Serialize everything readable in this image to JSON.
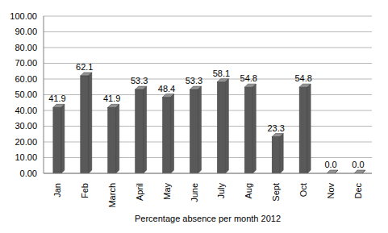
{
  "chart_data": {
    "type": "bar",
    "xlabel": "Percentage absence per month 2012",
    "categories": [
      "Jan",
      "Feb",
      "March",
      "April",
      "May",
      "June",
      "July",
      "Aug",
      "Sept",
      "Oct",
      "Nov",
      "Dec"
    ],
    "values": [
      41.9,
      62.1,
      41.9,
      53.3,
      48.4,
      53.3,
      58.1,
      54.8,
      23.3,
      54.8,
      0,
      0
    ],
    "value_labels": [
      "41.9",
      "62.1",
      "41.9",
      "53.3",
      "48.4",
      "53.3",
      "58.1",
      "54.8",
      "23.3",
      "54.8",
      "0.0",
      "0.0"
    ],
    "color": "#595959",
    "ylim": [
      0,
      100
    ],
    "yticks": [
      {
        "value": 0,
        "label": "0.00"
      },
      {
        "value": 10,
        "label": "10.00"
      },
      {
        "value": 20,
        "label": "20.00"
      },
      {
        "value": 30,
        "label": "30.00"
      },
      {
        "value": 40,
        "label": "40.00"
      },
      {
        "value": 50,
        "label": "50.00"
      },
      {
        "value": 60,
        "label": "60.00"
      },
      {
        "value": 70,
        "label": "70.00"
      },
      {
        "value": 80,
        "label": "80.00"
      },
      {
        "value": 90,
        "label": "90.00"
      },
      {
        "value": 100,
        "label": "100.00"
      }
    ],
    "grid": true,
    "data_labels": true
  }
}
